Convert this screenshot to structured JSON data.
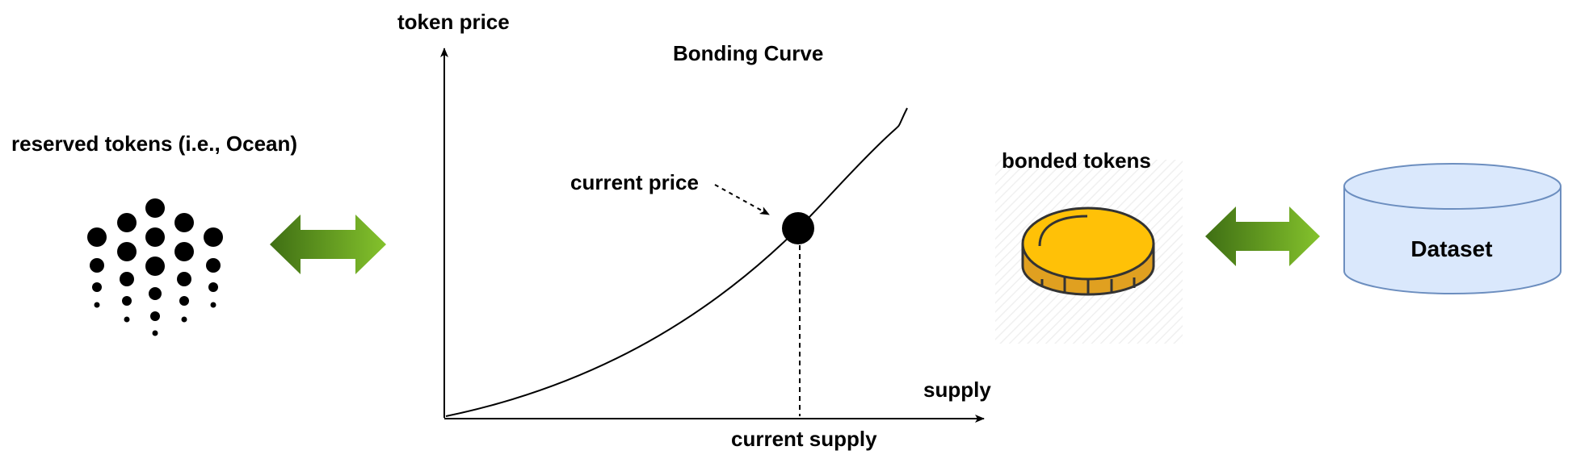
{
  "left": {
    "label": "reserved tokens (i.e., Ocean)",
    "icon": "ocean-protocol-logo"
  },
  "chart": {
    "title": "Bonding Curve",
    "y_axis_label": "token price",
    "x_axis_label": "supply",
    "point_label": "current price",
    "supply_label": "current supply"
  },
  "right": {
    "bonded_label": "bonded tokens",
    "icon": "gold-coin-icon",
    "dataset_label": "Dataset"
  },
  "colors": {
    "arrow_dark": "#3f6f14",
    "arrow_light": "#7fbf2a",
    "coin_face": "#ffc107",
    "coin_side": "#e0a020",
    "dataset_fill": "#dae8fc",
    "dataset_stroke": "#6c8ebf"
  }
}
